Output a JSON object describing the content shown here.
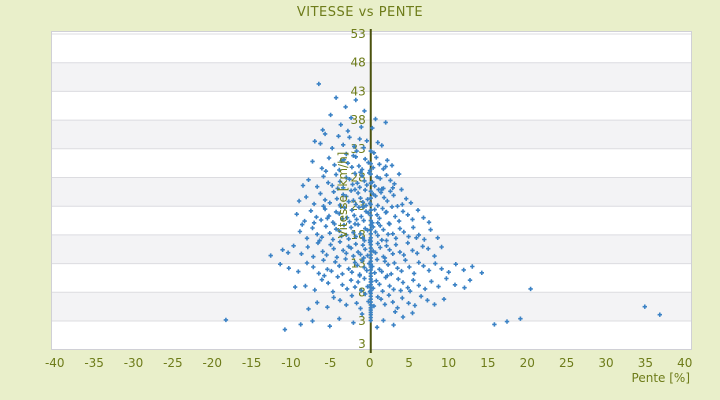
{
  "title": "VITESSE vs PENTE",
  "chart_data": {
    "type": "scatter",
    "title": "VITESSE vs PENTE",
    "xlabel": "Pente [%]",
    "ylabel": "Vitesse [km/h]",
    "x_ticks": [
      -40,
      -35,
      -30,
      -25,
      -20,
      -15,
      -10,
      -5,
      0,
      5,
      10,
      15,
      20,
      25,
      30,
      35,
      40
    ],
    "y_ticks": [
      53,
      48,
      43,
      38,
      33,
      28,
      23,
      18,
      13,
      8,
      3
    ],
    "y_axis_min_label": "3",
    "xlim": [
      -40.5,
      40.7
    ],
    "ylim": [
      -2,
      53
    ],
    "grid": "horizontal-bands",
    "legend": "none",
    "marker": {
      "shape": "plus",
      "color": "#3b82c5",
      "size": 5
    },
    "colors": {
      "page_background": "#e9efca",
      "plot_background": "#ffffff",
      "band": "#f3f3f5",
      "grid_line": "#dcdce0",
      "plot_border": "#d0d0d6",
      "axis_line": "#4b520e",
      "text": "#6e7c1a"
    },
    "points": [
      [
        -6.6,
        44.3
      ],
      [
        -4.4,
        41.9
      ],
      [
        -1.9,
        41.5
      ],
      [
        -3.2,
        40.3
      ],
      [
        -0.8,
        39.6
      ],
      [
        -5.1,
        38.9
      ],
      [
        -2.5,
        38.4
      ],
      [
        0.6,
        38.2
      ],
      [
        1.9,
        37.6
      ],
      [
        -3.8,
        37.2
      ],
      [
        -1.2,
        36.8
      ],
      [
        -6.1,
        36.3
      ],
      [
        0.2,
        36.6
      ],
      [
        -2.9,
        36.1
      ],
      [
        -5.8,
        35.6
      ],
      [
        -4.1,
        35.2
      ],
      [
        -2.7,
        35.0
      ],
      [
        -1.4,
        34.7
      ],
      [
        -0.5,
        34.4
      ],
      [
        0.9,
        34.1
      ],
      [
        -6.4,
        33.9
      ],
      [
        -3.5,
        33.7
      ],
      [
        -2.1,
        33.4
      ],
      [
        -0.9,
        33.2
      ],
      [
        1.4,
        33.6
      ],
      [
        -4.9,
        33.1
      ],
      [
        -7.1,
        34.3
      ],
      [
        -1.8,
        32.6
      ],
      [
        0.4,
        32.3
      ],
      [
        -3.1,
        32.1
      ],
      [
        -7.4,
        30.8
      ],
      [
        -6.2,
        29.6
      ],
      [
        -5.3,
        31.4
      ],
      [
        -4.6,
        30.2
      ],
      [
        -4.0,
        29.3
      ],
      [
        -3.4,
        31.1
      ],
      [
        -2.9,
        30.5
      ],
      [
        -2.4,
        29.8
      ],
      [
        -1.9,
        31.6
      ],
      [
        -1.5,
        30.0
      ],
      [
        -1.1,
        29.4
      ],
      [
        -0.7,
        31.2
      ],
      [
        -0.3,
        30.6
      ],
      [
        0.3,
        29.7
      ],
      [
        0.7,
        31.5
      ],
      [
        1.1,
        30.3
      ],
      [
        1.6,
        29.5
      ],
      [
        2.1,
        31.0
      ],
      [
        2.7,
        30.1
      ],
      [
        -5.7,
        29.1
      ],
      [
        -0.1,
        29.2
      ],
      [
        1.9,
        29.9
      ],
      [
        -3.7,
        30.9
      ],
      [
        -2.2,
        31.8
      ],
      [
        -7.9,
        27.6
      ],
      [
        -6.8,
        26.4
      ],
      [
        -6.0,
        28.2
      ],
      [
        -5.4,
        27.1
      ],
      [
        -4.9,
        26.6
      ],
      [
        -4.4,
        28.5
      ],
      [
        -3.9,
        27.3
      ],
      [
        -3.5,
        26.2
      ],
      [
        -3.1,
        28.0
      ],
      [
        -2.7,
        27.7
      ],
      [
        -2.3,
        26.8
      ],
      [
        -2.0,
        28.7
      ],
      [
        -1.7,
        27.0
      ],
      [
        -1.4,
        26.3
      ],
      [
        -1.1,
        28.3
      ],
      [
        -0.8,
        27.4
      ],
      [
        -0.5,
        26.7
      ],
      [
        -0.2,
        28.8
      ],
      [
        0.2,
        27.2
      ],
      [
        0.5,
        26.5
      ],
      [
        0.8,
        28.1
      ],
      [
        1.2,
        27.8
      ],
      [
        1.6,
        26.1
      ],
      [
        2.0,
        28.4
      ],
      [
        2.5,
        27.5
      ],
      [
        3.0,
        26.9
      ],
      [
        3.6,
        28.6
      ],
      [
        -8.6,
        26.6
      ],
      [
        1.4,
        26.0
      ],
      [
        2.8,
        26.2
      ],
      [
        -4.2,
        26.1
      ],
      [
        -1.3,
        28.9
      ],
      [
        -8.2,
        24.6
      ],
      [
        -7.2,
        23.4
      ],
      [
        -6.4,
        25.2
      ],
      [
        -5.8,
        24.1
      ],
      [
        -5.2,
        23.6
      ],
      [
        -4.7,
        25.5
      ],
      [
        -4.3,
        24.3
      ],
      [
        -3.9,
        23.2
      ],
      [
        -3.5,
        25.0
      ],
      [
        -3.1,
        24.7
      ],
      [
        -2.8,
        23.8
      ],
      [
        -2.5,
        25.7
      ],
      [
        -2.2,
        24.0
      ],
      [
        -1.9,
        23.3
      ],
      [
        -1.6,
        25.3
      ],
      [
        -1.3,
        24.4
      ],
      [
        -1.0,
        23.7
      ],
      [
        -0.7,
        25.8
      ],
      [
        -0.4,
        24.2
      ],
      [
        -0.1,
        23.5
      ],
      [
        0.3,
        25.1
      ],
      [
        0.6,
        24.8
      ],
      [
        0.9,
        23.1
      ],
      [
        1.3,
        25.4
      ],
      [
        1.7,
        24.5
      ],
      [
        2.1,
        23.9
      ],
      [
        2.5,
        25.6
      ],
      [
        2.9,
        24.9
      ],
      [
        3.4,
        23.0
      ],
      [
        3.9,
        25.9
      ],
      [
        4.5,
        24.3
      ],
      [
        5.1,
        23.6
      ],
      [
        -6.0,
        23.0
      ],
      [
        -0.6,
        23.1
      ],
      [
        1.0,
        25.9
      ],
      [
        -2.0,
        25.9
      ],
      [
        -9.1,
        23.9
      ],
      [
        4.0,
        23.3
      ],
      [
        -9.4,
        21.6
      ],
      [
        -8.4,
        20.4
      ],
      [
        -7.6,
        22.2
      ],
      [
        -6.9,
        21.1
      ],
      [
        -6.3,
        20.6
      ],
      [
        -5.8,
        22.5
      ],
      [
        -5.3,
        21.3
      ],
      [
        -4.8,
        20.2
      ],
      [
        -4.4,
        22.0
      ],
      [
        -4.0,
        21.7
      ],
      [
        -3.6,
        20.8
      ],
      [
        -3.3,
        22.7
      ],
      [
        -3.0,
        21.0
      ],
      [
        -2.7,
        20.3
      ],
      [
        -2.4,
        22.3
      ],
      [
        -2.1,
        21.4
      ],
      [
        -1.8,
        20.7
      ],
      [
        -1.5,
        22.8
      ],
      [
        -1.2,
        21.2
      ],
      [
        -0.9,
        20.5
      ],
      [
        -0.6,
        22.1
      ],
      [
        -0.3,
        21.8
      ],
      [
        0.2,
        20.1
      ],
      [
        0.5,
        22.4
      ],
      [
        0.8,
        21.5
      ],
      [
        1.1,
        20.9
      ],
      [
        1.5,
        22.6
      ],
      [
        1.9,
        21.9
      ],
      [
        2.3,
        20.0
      ],
      [
        2.7,
        22.9
      ],
      [
        3.1,
        21.2
      ],
      [
        3.6,
        20.4
      ],
      [
        4.1,
        22.1
      ],
      [
        4.7,
        21.5
      ],
      [
        5.3,
        20.7
      ],
      [
        6.0,
        22.3
      ],
      [
        6.7,
        21.0
      ],
      [
        7.4,
        20.2
      ],
      [
        -7.2,
        20.1
      ],
      [
        -1.0,
        22.9
      ],
      [
        0.9,
        20.1
      ],
      [
        -5.5,
        20.9
      ],
      [
        2.0,
        22.0
      ],
      [
        -3.8,
        22.9
      ],
      [
        -9.0,
        18.6
      ],
      [
        -8.1,
        17.4
      ],
      [
        -7.4,
        19.2
      ],
      [
        -6.8,
        18.1
      ],
      [
        -6.2,
        17.6
      ],
      [
        -5.7,
        19.5
      ],
      [
        -5.2,
        18.3
      ],
      [
        -4.8,
        17.2
      ],
      [
        -4.4,
        19.0
      ],
      [
        -4.0,
        18.7
      ],
      [
        -3.7,
        17.8
      ],
      [
        -3.4,
        19.7
      ],
      [
        -3.1,
        18.0
      ],
      [
        -2.8,
        17.3
      ],
      [
        -2.5,
        19.3
      ],
      [
        -2.2,
        18.4
      ],
      [
        -1.9,
        17.7
      ],
      [
        -1.6,
        19.8
      ],
      [
        -1.3,
        18.2
      ],
      [
        -1.0,
        17.5
      ],
      [
        -0.7,
        19.1
      ],
      [
        -0.4,
        18.8
      ],
      [
        -0.1,
        17.1
      ],
      [
        0.3,
        19.4
      ],
      [
        0.6,
        18.5
      ],
      [
        0.9,
        17.9
      ],
      [
        1.2,
        19.6
      ],
      [
        1.6,
        18.9
      ],
      [
        2.0,
        17.0
      ],
      [
        2.4,
        19.9
      ],
      [
        2.8,
        18.2
      ],
      [
        3.2,
        17.4
      ],
      [
        3.7,
        19.1
      ],
      [
        4.2,
        18.5
      ],
      [
        4.8,
        17.7
      ],
      [
        5.4,
        19.3
      ],
      [
        6.1,
        18.0
      ],
      [
        6.8,
        17.2
      ],
      [
        7.6,
        18.9
      ],
      [
        8.5,
        17.5
      ],
      [
        -8.7,
        19.8
      ],
      [
        -0.8,
        17.0
      ],
      [
        1.4,
        17.1
      ],
      [
        -6.5,
        17.0
      ],
      [
        2.2,
        18.1
      ],
      [
        -4.6,
        19.9
      ],
      [
        5.8,
        17.5
      ],
      [
        -2.0,
        19.9
      ],
      [
        -11.2,
        15.4
      ],
      [
        -9.8,
        16.1
      ],
      [
        -8.8,
        14.7
      ],
      [
        -8.0,
        15.9
      ],
      [
        -7.3,
        14.2
      ],
      [
        -6.7,
        16.6
      ],
      [
        -6.1,
        15.1
      ],
      [
        -5.6,
        14.5
      ],
      [
        -5.1,
        16.3
      ],
      [
        -4.7,
        15.6
      ],
      [
        -4.3,
        14.1
      ],
      [
        -3.9,
        16.8
      ],
      [
        -3.5,
        15.3
      ],
      [
        -3.1,
        14.8
      ],
      [
        -2.8,
        16.0
      ],
      [
        -2.5,
        15.7
      ],
      [
        -2.2,
        14.3
      ],
      [
        -1.9,
        16.4
      ],
      [
        -1.6,
        15.0
      ],
      [
        -1.3,
        14.6
      ],
      [
        -1.0,
        16.2
      ],
      [
        -0.7,
        15.5
      ],
      [
        -0.4,
        14.4
      ],
      [
        -0.1,
        16.7
      ],
      [
        0.3,
        15.2
      ],
      [
        0.6,
        14.9
      ],
      [
        0.9,
        16.5
      ],
      [
        1.2,
        15.8
      ],
      [
        1.6,
        14.2
      ],
      [
        2.0,
        16.1
      ],
      [
        2.4,
        15.4
      ],
      [
        2.8,
        14.7
      ],
      [
        3.2,
        16.3
      ],
      [
        3.7,
        15.0
      ],
      [
        4.2,
        14.5
      ],
      [
        4.7,
        16.6
      ],
      [
        5.3,
        15.3
      ],
      [
        5.9,
        14.8
      ],
      [
        6.6,
        16.0
      ],
      [
        7.3,
        15.6
      ],
      [
        8.1,
        14.3
      ],
      [
        9.0,
        15.9
      ],
      [
        -12.7,
        14.4
      ],
      [
        -10.5,
        14.9
      ],
      [
        1.8,
        14.0
      ],
      [
        -0.9,
        14.0
      ],
      [
        -10.4,
        12.2
      ],
      [
        -9.2,
        11.6
      ],
      [
        -8.1,
        13.1
      ],
      [
        -7.3,
        12.4
      ],
      [
        -6.6,
        11.3
      ],
      [
        -6.0,
        13.6
      ],
      [
        -5.5,
        12.0
      ],
      [
        -5.0,
        11.7
      ],
      [
        -4.5,
        13.3
      ],
      [
        -4.0,
        12.6
      ],
      [
        -3.6,
        11.2
      ],
      [
        -3.2,
        13.8
      ],
      [
        -2.8,
        12.1
      ],
      [
        -2.4,
        11.5
      ],
      [
        -2.0,
        13.2
      ],
      [
        -1.7,
        12.7
      ],
      [
        -1.4,
        11.1
      ],
      [
        -1.1,
        13.5
      ],
      [
        -0.8,
        12.3
      ],
      [
        -0.5,
        11.8
      ],
      [
        -0.2,
        13.0
      ],
      [
        0.2,
        12.5
      ],
      [
        0.5,
        11.4
      ],
      [
        0.8,
        13.7
      ],
      [
        1.1,
        12.0
      ],
      [
        1.4,
        11.6
      ],
      [
        1.8,
        13.4
      ],
      [
        2.2,
        12.8
      ],
      [
        2.6,
        11.2
      ],
      [
        3.0,
        13.1
      ],
      [
        3.4,
        12.2
      ],
      [
        3.9,
        11.7
      ],
      [
        4.4,
        13.6
      ],
      [
        4.9,
        12.4
      ],
      [
        5.5,
        11.3
      ],
      [
        6.1,
        13.2
      ],
      [
        6.7,
        12.6
      ],
      [
        7.4,
        11.8
      ],
      [
        8.2,
        13.0
      ],
      [
        9.0,
        12.1
      ],
      [
        9.9,
        11.5
      ],
      [
        10.8,
        12.9
      ],
      [
        11.8,
        11.9
      ],
      [
        12.9,
        12.5
      ],
      [
        14.1,
        11.4
      ],
      [
        -11.5,
        12.9
      ],
      [
        -8.3,
        9.1
      ],
      [
        -7.1,
        8.4
      ],
      [
        -6.2,
        10.2
      ],
      [
        -5.4,
        9.6
      ],
      [
        -4.8,
        8.1
      ],
      [
        -4.2,
        10.7
      ],
      [
        -3.6,
        9.3
      ],
      [
        -3.0,
        8.6
      ],
      [
        -2.5,
        10.1
      ],
      [
        -2.0,
        8.9
      ],
      [
        -1.6,
        9.8
      ],
      [
        -1.2,
        8.3
      ],
      [
        -0.8,
        10.4
      ],
      [
        -0.4,
        9.0
      ],
      [
        0.3,
        8.7
      ],
      [
        0.7,
        10.0
      ],
      [
        1.1,
        9.4
      ],
      [
        1.5,
        8.2
      ],
      [
        1.9,
        10.6
      ],
      [
        2.4,
        9.1
      ],
      [
        2.9,
        8.5
      ],
      [
        3.5,
        10.3
      ],
      [
        4.1,
        9.7
      ],
      [
        4.7,
        8.8
      ],
      [
        5.4,
        10.1
      ],
      [
        6.1,
        9.2
      ],
      [
        6.9,
        8.6
      ],
      [
        7.7,
        9.9
      ],
      [
        8.6,
        9.0
      ],
      [
        9.6,
        10.4
      ],
      [
        10.7,
        9.3
      ],
      [
        11.9,
        8.8
      ],
      [
        20.3,
        8.6
      ],
      [
        -9.6,
        8.9
      ],
      [
        0.1,
        9.9
      ],
      [
        -1.4,
        10.9
      ],
      [
        2.1,
        10.9
      ],
      [
        12.6,
        10.1
      ],
      [
        5.0,
        8.2
      ],
      [
        -5.9,
        10.9
      ],
      [
        3.8,
        8.3
      ],
      [
        -0.1,
        8.1
      ],
      [
        -6.8,
        6.2
      ],
      [
        -5.5,
        5.4
      ],
      [
        -4.7,
        7.1
      ],
      [
        -3.9,
        6.6
      ],
      [
        -3.1,
        5.8
      ],
      [
        -2.4,
        7.4
      ],
      [
        -1.8,
        6.1
      ],
      [
        -1.3,
        5.2
      ],
      [
        -0.7,
        7.7
      ],
      [
        -0.3,
        6.4
      ],
      [
        0.4,
        5.6
      ],
      [
        0.9,
        7.2
      ],
      [
        1.3,
        6.8
      ],
      [
        1.8,
        5.9
      ],
      [
        2.3,
        7.5
      ],
      [
        2.8,
        6.3
      ],
      [
        3.4,
        5.3
      ],
      [
        4.0,
        7.0
      ],
      [
        4.8,
        6.1
      ],
      [
        5.6,
        5.7
      ],
      [
        6.4,
        7.3
      ],
      [
        7.2,
        6.6
      ],
      [
        8.1,
        5.9
      ],
      [
        9.3,
        6.8
      ],
      [
        34.8,
        5.5
      ],
      [
        36.7,
        4.1
      ],
      [
        -7.9,
        5.1
      ],
      [
        3.1,
        4.6
      ],
      [
        -18.4,
        3.2
      ],
      [
        -10.9,
        1.5
      ],
      [
        -8.9,
        2.4
      ],
      [
        -7.4,
        3.0
      ],
      [
        -5.2,
        2.1
      ],
      [
        -4.0,
        3.4
      ],
      [
        -2.2,
        2.7
      ],
      [
        -1.1,
        4.2
      ],
      [
        0.8,
        1.9
      ],
      [
        1.6,
        3.1
      ],
      [
        2.9,
        2.3
      ],
      [
        4.1,
        3.7
      ],
      [
        15.7,
        2.4
      ],
      [
        17.3,
        2.9
      ],
      [
        19.0,
        3.4
      ],
      [
        5.3,
        4.4
      ],
      [
        0.0,
        3.1
      ],
      [
        0.0,
        3.6
      ],
      [
        0.0,
        4.1
      ],
      [
        0.0,
        4.5
      ],
      [
        0.0,
        4.9
      ],
      [
        0.0,
        5.3
      ],
      [
        0.0,
        5.8
      ],
      [
        0.0,
        6.3
      ],
      [
        0.0,
        6.8
      ],
      [
        0.0,
        7.3
      ],
      [
        0.0,
        7.8
      ],
      [
        0.0,
        8.3
      ],
      [
        0.0,
        8.8
      ],
      [
        0.0,
        9.3
      ],
      [
        0.0,
        9.8
      ],
      [
        0.0,
        10.3
      ],
      [
        0.0,
        10.8
      ],
      [
        0.0,
        11.3
      ],
      [
        0.0,
        11.9
      ],
      [
        0.0,
        12.4
      ],
      [
        0.0,
        12.9
      ],
      [
        0.0,
        13.4
      ],
      [
        0.0,
        14.0
      ],
      [
        0.0,
        14.5
      ],
      [
        0.0,
        15.1
      ],
      [
        0.0,
        15.7
      ],
      [
        0.0,
        16.3
      ],
      [
        0.0,
        16.9
      ],
      [
        0.0,
        17.5
      ],
      [
        0.0,
        18.2
      ],
      [
        0.0,
        18.9
      ],
      [
        0.0,
        19.7
      ],
      [
        0.0,
        20.5
      ],
      [
        0.0,
        21.4
      ],
      [
        0.0,
        22.3
      ],
      [
        0.0,
        23.3
      ],
      [
        0.0,
        24.4
      ],
      [
        0.0,
        25.6
      ],
      [
        0.0,
        27.0
      ],
      [
        0.0,
        28.6
      ],
      [
        0.0,
        30.4
      ],
      [
        0.0,
        32.6
      ]
    ]
  }
}
